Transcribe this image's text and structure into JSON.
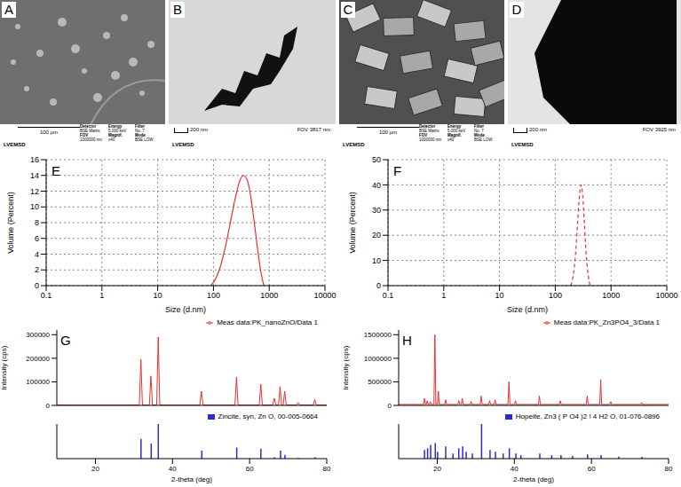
{
  "images": [
    {
      "panel": "A",
      "scale_bar": "100 µm",
      "info": [
        [
          "Detector",
          "BSE Matrix"
        ],
        [
          "Energy",
          "5.000 keV"
        ],
        [
          "Filter",
          "No. 7"
        ],
        [
          "FOV",
          "1000000 nm"
        ],
        [
          "Magnif.",
          "x40"
        ],
        [
          "Mode",
          "BSE LOW"
        ]
      ],
      "footer": "LVEMSD"
    },
    {
      "panel": "B",
      "scale_bar": "200 nm",
      "fov": "FOV 3817 nm",
      "footer": "LVEMSD"
    },
    {
      "panel": "C",
      "scale_bar": "100 µm",
      "info": [
        [
          "Detector",
          "BSE Matrix"
        ],
        [
          "Energy",
          "5.000 keV"
        ],
        [
          "Filter",
          "No. 7"
        ],
        [
          "FOV",
          "1000000 nm"
        ],
        [
          "Magnif.",
          "x40"
        ],
        [
          "Mode",
          "BSE LOW"
        ]
      ],
      "footer": "LVEMSD"
    },
    {
      "panel": "D",
      "scale_bar": "200 nm",
      "fov": "FOV 3925 nm",
      "footer": "LVEMSD"
    }
  ],
  "chart_data": [
    {
      "panel": "E",
      "type": "line",
      "x_label": "Size (d.nm)",
      "y_label": "Volume (Percent)",
      "log": "x",
      "grid": true,
      "xlim": [
        0.1,
        10000
      ],
      "xticks": [
        0.1,
        1,
        10,
        100,
        1000,
        10000
      ],
      "ylim": [
        0,
        16
      ],
      "yticks": [
        0,
        2,
        4,
        6,
        8,
        10,
        12,
        14,
        16
      ],
      "color": "#e8312f",
      "line_style": "solid",
      "x": [
        90,
        110,
        130,
        150,
        180,
        210,
        250,
        300,
        340,
        400,
        460,
        530,
        610,
        700,
        800
      ],
      "values": [
        0,
        0.9,
        2.2,
        3.8,
        6.3,
        8.7,
        11.3,
        13.4,
        14,
        13.5,
        11.6,
        8.5,
        5,
        2,
        0
      ]
    },
    {
      "panel": "F",
      "type": "line",
      "x_label": "Size (d.nm)",
      "y_label": "Volume (Percent)",
      "log": "x",
      "grid": true,
      "xlim": [
        0.1,
        10000
      ],
      "xticks": [
        0.1,
        1,
        10,
        100,
        1000,
        10000
      ],
      "ylim": [
        0,
        50
      ],
      "yticks": [
        0,
        10,
        20,
        30,
        40,
        50
      ],
      "color": "#e8312f",
      "line_style": "dashed",
      "x": [
        190,
        210,
        230,
        250,
        270,
        290,
        310,
        330,
        360,
        390,
        420
      ],
      "values": [
        0,
        4,
        12,
        24,
        35,
        40,
        36,
        26,
        12,
        4,
        0
      ]
    },
    {
      "panel": "G",
      "type": "line",
      "y_label": "Intensity (cps)",
      "tick_labels": "y",
      "legend": "upper right",
      "xlim": [
        10,
        80
      ],
      "xticks": [
        20,
        40,
        60,
        80
      ],
      "ylim": [
        0,
        320000
      ],
      "yticks": [
        0,
        100000,
        200000,
        300000
      ],
      "series": [
        {
          "name": "Meas data:PK_nanoZnO/Data 1",
          "color": "#e8312f",
          "x": [
            10,
            31.4,
            31.8,
            32.2,
            34.0,
            34.4,
            34.8,
            35.9,
            36.3,
            36.7,
            47.1,
            47.5,
            47.9,
            56.2,
            56.6,
            57.0,
            62.5,
            62.9,
            63.3,
            66.0,
            66.4,
            66.8,
            67.5,
            67.9,
            68.3,
            68.7,
            69.1,
            69.5,
            72.2,
            72.6,
            73.0,
            76.5,
            76.9,
            77.3,
            80
          ],
          "values": [
            2000,
            2000,
            195000,
            2000,
            2000,
            125000,
            2000,
            2000,
            290000,
            2000,
            2000,
            60000,
            2000,
            2000,
            120000,
            2000,
            2000,
            90000,
            2000,
            2000,
            30000,
            2000,
            2000,
            80000,
            2000,
            2000,
            60000,
            2000,
            2000,
            12000,
            2000,
            2000,
            25000,
            2000,
            2000
          ]
        }
      ]
    },
    {
      "type": "bar",
      "x_label": "2-theta (deg)",
      "tick_labels": "x",
      "legend": "upper right",
      "xlim": [
        10,
        80
      ],
      "xticks": [
        20,
        40,
        60,
        80
      ],
      "ylim": [
        0,
        100
      ],
      "yticks": [],
      "series": [
        {
          "name": "Zincite, syn, Zn O, 00-005-0664",
          "color": "#2b2bd4",
          "x": [
            31.77,
            34.42,
            36.25,
            47.54,
            56.6,
            62.86,
            66.38,
            67.96,
            69.1,
            72.6,
            76.9
          ],
          "values": [
            57,
            44,
            100,
            23,
            32,
            29,
            4,
            23,
            11,
            2,
            4
          ]
        }
      ]
    },
    {
      "panel": "H",
      "type": "line",
      "y_label": "Intensity (cps)",
      "tick_labels": "y",
      "legend": "upper right",
      "xlim": [
        10,
        80
      ],
      "xticks": [
        20,
        40,
        60,
        80
      ],
      "ylim": [
        0,
        1600000
      ],
      "yticks": [
        0,
        500000,
        1000000,
        1500000
      ],
      "series": [
        {
          "name": "Meas data:PK_Zn3PO4_3/Data 1",
          "color": "#e8312f",
          "x": [
            10,
            16.45,
            16.7,
            16.95,
            17.15,
            17.4,
            17.65,
            17.95,
            18.2,
            18.45,
            19.15,
            19.4,
            19.65,
            20.05,
            20.3,
            20.55,
            21.95,
            22.2,
            22.45,
            25.35,
            25.6,
            25.85,
            26.25,
            26.5,
            26.75,
            28.55,
            28.8,
            29.05,
            31.15,
            31.4,
            31.65,
            33.35,
            33.6,
            33.85,
            34.75,
            35.0,
            35.25,
            38.35,
            38.6,
            38.85,
            40.05,
            40.3,
            40.55,
            46.25,
            46.5,
            46.75,
            51.65,
            51.9,
            52.15,
            58.65,
            58.9,
            59.15,
            62.15,
            62.4,
            62.65,
            64.75,
            65.0,
            65.25,
            72.75,
            73.0,
            73.25,
            80
          ],
          "values": [
            20000,
            20000,
            150000,
            20000,
            20000,
            100000,
            20000,
            20000,
            80000,
            20000,
            20000,
            1500000,
            20000,
            20000,
            300000,
            20000,
            20000,
            120000,
            20000,
            20000,
            100000,
            20000,
            20000,
            150000,
            20000,
            20000,
            80000,
            20000,
            20000,
            200000,
            20000,
            20000,
            100000,
            20000,
            20000,
            120000,
            20000,
            20000,
            500000,
            20000,
            20000,
            100000,
            20000,
            20000,
            200000,
            20000,
            20000,
            100000,
            20000,
            20000,
            200000,
            20000,
            20000,
            550000,
            20000,
            20000,
            80000,
            20000,
            20000,
            60000,
            20000,
            20000
          ]
        }
      ]
    },
    {
      "type": "bar",
      "x_label": "2-theta (deg)",
      "tick_labels": "x",
      "legend": "upper right",
      "xlim": [
        10,
        80
      ],
      "xticks": [
        20,
        40,
        60,
        80
      ],
      "ylim": [
        0,
        100
      ],
      "yticks": [],
      "series": [
        {
          "name": "Hopeite, Zn3 ( P O4 )2 ! 4 H2 O, 01-076-0896",
          "color": "#2b2bd4",
          "x": [
            16.6,
            17.4,
            18.2,
            19.4,
            20.0,
            22.1,
            24.0,
            25.5,
            26.5,
            27.4,
            29.0,
            31.4,
            33.6,
            35.0,
            37.0,
            38.6,
            40.3,
            41.6,
            46.5,
            49.6,
            52.0,
            55.0,
            58.9,
            62.4,
            67.0,
            73.0
          ],
          "values": [
            25,
            30,
            40,
            45,
            20,
            35,
            15,
            30,
            35,
            20,
            15,
            100,
            25,
            20,
            15,
            30,
            15,
            10,
            15,
            10,
            10,
            8,
            12,
            10,
            6,
            5
          ]
        }
      ]
    }
  ]
}
